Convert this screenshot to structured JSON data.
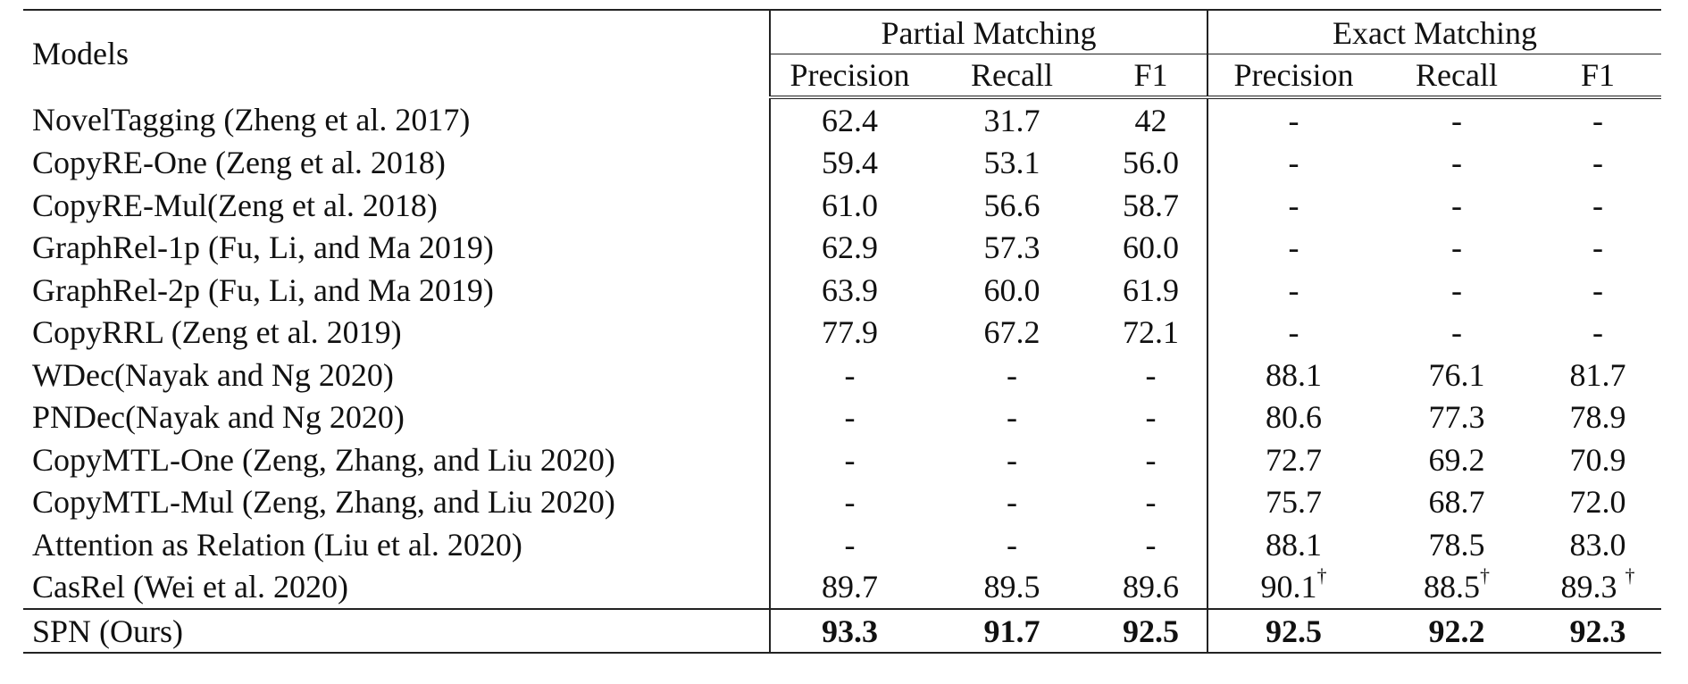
{
  "table": {
    "models_header": "Models",
    "groups": [
      {
        "label": "Partial Matching",
        "columns": [
          "Precision",
          "Recall",
          "F1"
        ]
      },
      {
        "label": "Exact Matching",
        "columns": [
          "Precision",
          "Recall",
          "F1"
        ]
      }
    ],
    "rows": [
      {
        "model": "NovelTagging (Zheng et al. 2017)",
        "values": [
          "62.4",
          "31.7",
          "42",
          "-",
          "-",
          "-"
        ],
        "marks": [
          "",
          "",
          "",
          "",
          "",
          ""
        ]
      },
      {
        "model": "CopyRE-One (Zeng et al. 2018)",
        "values": [
          "59.4",
          "53.1",
          "56.0",
          "-",
          "-",
          "-"
        ],
        "marks": [
          "",
          "",
          "",
          "",
          "",
          ""
        ]
      },
      {
        "model": "CopyRE-Mul(Zeng et al. 2018)",
        "values": [
          "61.0",
          "56.6",
          "58.7",
          "-",
          "-",
          "-"
        ],
        "marks": [
          "",
          "",
          "",
          "",
          "",
          ""
        ]
      },
      {
        "model": "GraphRel-1p (Fu, Li, and Ma 2019)",
        "values": [
          "62.9",
          "57.3",
          "60.0",
          "-",
          "-",
          "-"
        ],
        "marks": [
          "",
          "",
          "",
          "",
          "",
          ""
        ]
      },
      {
        "model": "GraphRel-2p (Fu, Li, and Ma 2019)",
        "values": [
          "63.9",
          "60.0",
          "61.9",
          "-",
          "-",
          "-"
        ],
        "marks": [
          "",
          "",
          "",
          "",
          "",
          ""
        ]
      },
      {
        "model": "CopyRRL (Zeng et al. 2019)",
        "values": [
          "77.9",
          "67.2",
          "72.1",
          "-",
          "-",
          "-"
        ],
        "marks": [
          "",
          "",
          "",
          "",
          "",
          ""
        ]
      },
      {
        "model": "WDec(Nayak and Ng 2020)",
        "values": [
          "-",
          "-",
          "-",
          "88.1",
          "76.1",
          "81.7"
        ],
        "marks": [
          "",
          "",
          "",
          "",
          "",
          ""
        ]
      },
      {
        "model": "PNDec(Nayak and Ng 2020)",
        "values": [
          "-",
          "-",
          "-",
          "80.6",
          "77.3",
          "78.9"
        ],
        "marks": [
          "",
          "",
          "",
          "",
          "",
          ""
        ]
      },
      {
        "model": "CopyMTL-One (Zeng, Zhang, and Liu 2020)",
        "values": [
          "-",
          "-",
          "-",
          "72.7",
          "69.2",
          "70.9"
        ],
        "marks": [
          "",
          "",
          "",
          "",
          "",
          ""
        ]
      },
      {
        "model": "CopyMTL-Mul (Zeng, Zhang, and Liu 2020)",
        "values": [
          "-",
          "-",
          "-",
          "75.7",
          "68.7",
          "72.0"
        ],
        "marks": [
          "",
          "",
          "",
          "",
          "",
          ""
        ]
      },
      {
        "model": "Attention as Relation (Liu et al. 2020)",
        "values": [
          "-",
          "-",
          "-",
          "88.1",
          "78.5",
          "83.0"
        ],
        "marks": [
          "",
          "",
          "",
          "",
          "",
          ""
        ]
      },
      {
        "model": "CasRel (Wei et al. 2020)",
        "values": [
          "89.7",
          "89.5",
          "89.6",
          "90.1",
          "88.5",
          "89.3 "
        ],
        "marks": [
          "",
          "",
          "",
          "†",
          "†",
          "†"
        ]
      }
    ],
    "ours": {
      "model": "SPN (Ours)",
      "values": [
        "93.3",
        "91.7",
        "92.5",
        "92.5",
        "92.2",
        "92.3"
      ]
    }
  }
}
